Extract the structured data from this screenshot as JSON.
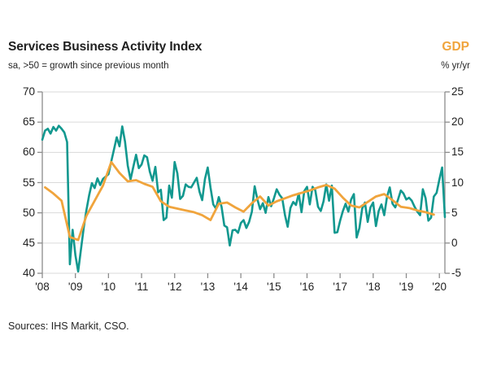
{
  "header": {
    "title": "Services Business Activity Index",
    "subtitle": "sa, >50 = growth since previous month",
    "right_title": "GDP",
    "right_subtitle": "% yr/yr"
  },
  "footer": {
    "source": "Sources: IHS Markit, CSO."
  },
  "colors": {
    "teal": "#12988F",
    "orange": "#F0A43C",
    "grid": "#DADADA",
    "axis": "#8C8C8C",
    "text": "#1F1F1F"
  },
  "chart_data": {
    "type": "line",
    "title": "Services Business Activity Index",
    "subtitle": "sa, >50 = growth since previous month",
    "right_title": "GDP",
    "right_subtitle": "% yr/yr",
    "source": "Sources: IHS Markit, CSO.",
    "grid": true,
    "x_axis": {
      "start": "2008-01",
      "end": "2020-03",
      "tick_labels": [
        "'08",
        "'09",
        "'10",
        "'11",
        "'12",
        "'13",
        "'14",
        "'15",
        "'16",
        "'17",
        "'18",
        "'19",
        "'20"
      ]
    },
    "left_axis": {
      "min": 40,
      "max": 70,
      "ticks": [
        70,
        65,
        60,
        55,
        50,
        45,
        40
      ]
    },
    "right_axis": {
      "min": -5,
      "max": 25,
      "ticks": [
        25,
        20,
        15,
        10,
        5,
        0,
        -5
      ]
    },
    "series": [
      {
        "id": "services-bai",
        "name": "Services Business Activity Index",
        "axis": "left",
        "freq": "monthly",
        "start": "2008-01",
        "color": "#12988F",
        "width": 2.6,
        "values": [
          62.1,
          63.6,
          63.9,
          63.1,
          64.2,
          63.6,
          64.4,
          63.9,
          63.3,
          61.7,
          41.5,
          47.2,
          43.0,
          40.3,
          43.9,
          47.5,
          50.4,
          52.9,
          54.9,
          54.1,
          55.7,
          54.6,
          55.6,
          56.0,
          56.4,
          58.5,
          60.5,
          62.5,
          61.0,
          64.3,
          61.8,
          57.8,
          55.5,
          57.6,
          59.6,
          57.4,
          58.0,
          59.5,
          59.2,
          56.8,
          55.3,
          57.6,
          53.4,
          53.8,
          48.8,
          49.2,
          54.5,
          52.5,
          58.4,
          56.5,
          52.3,
          52.8,
          54.7,
          54.3,
          54.2,
          55.0,
          55.8,
          53.5,
          52.1,
          55.6,
          57.5,
          54.2,
          51.4,
          50.7,
          52.6,
          51.0,
          47.9,
          47.6,
          44.6,
          47.1,
          47.2,
          46.7,
          48.3,
          48.8,
          47.5,
          48.5,
          50.2,
          54.4,
          52.2,
          50.6,
          51.6,
          50.0,
          52.6,
          51.1,
          52.4,
          53.9,
          53.0,
          52.4,
          49.6,
          47.7,
          50.8,
          51.8,
          51.3,
          53.2,
          50.1,
          53.6,
          54.3,
          51.4,
          54.3,
          53.7,
          51.0,
          50.3,
          51.9,
          54.7,
          52.0,
          54.5,
          46.7,
          46.8,
          48.7,
          50.3,
          51.5,
          50.2,
          52.2,
          53.1,
          45.9,
          47.5,
          50.7,
          51.7,
          48.5,
          50.9,
          51.7,
          47.8,
          50.3,
          51.4,
          49.6,
          52.6,
          54.2,
          51.5,
          50.9,
          52.2,
          53.7,
          53.2,
          52.2,
          52.5,
          52.0,
          51.0,
          50.2,
          49.6,
          53.9,
          52.4,
          48.7,
          49.2,
          52.7,
          53.3,
          55.5,
          57.5,
          49.3
        ]
      },
      {
        "id": "gdp",
        "name": "GDP",
        "axis": "right",
        "freq": "quarterly",
        "start": "2008-Q1",
        "color": "#F0A43C",
        "width": 2.8,
        "values": [
          9.2,
          8.2,
          7.0,
          1.0,
          0.5,
          4.5,
          7.0,
          9.5,
          13.4,
          11.6,
          10.2,
          10.4,
          9.8,
          9.3,
          6.9,
          6.0,
          5.7,
          5.4,
          5.1,
          4.6,
          3.8,
          6.5,
          6.7,
          5.9,
          5.2,
          6.6,
          7.7,
          6.2,
          6.9,
          7.4,
          7.9,
          8.3,
          8.7,
          9.2,
          9.6,
          9.0,
          7.5,
          6.2,
          5.9,
          6.8,
          7.7,
          8.1,
          7.1,
          6.0,
          5.8,
          5.4,
          5.1,
          4.7
        ]
      }
    ]
  }
}
